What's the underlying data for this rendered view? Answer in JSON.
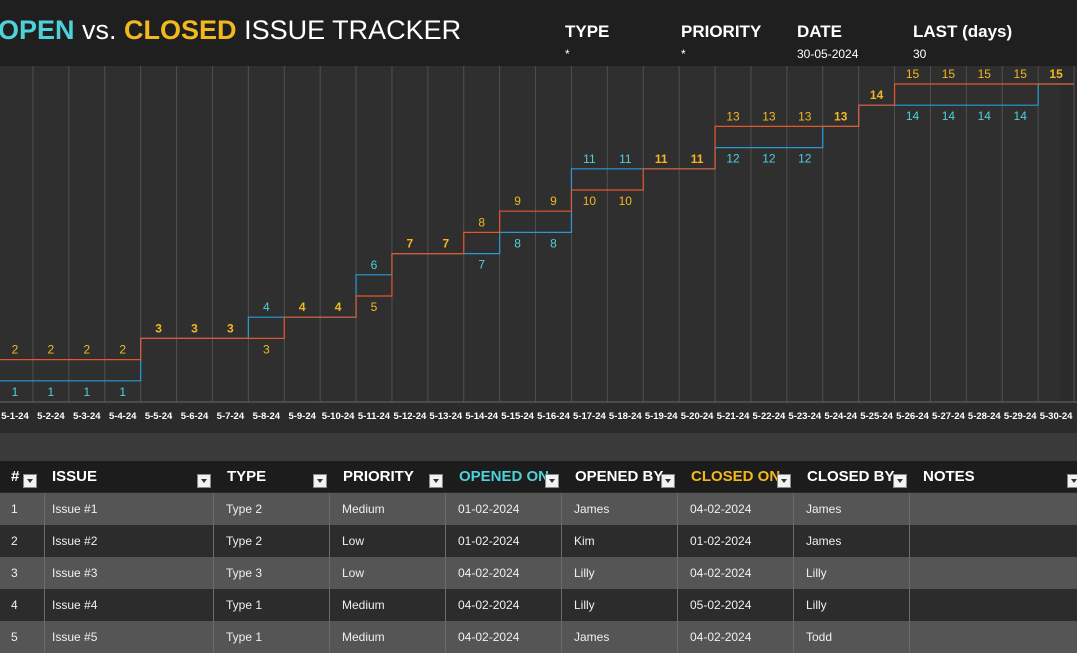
{
  "header": {
    "title_open": "OPEN",
    "title_vs": " vs. ",
    "title_closed": "CLOSED",
    "title_rest": " ISSUE TRACKER",
    "filters": [
      {
        "label": "TYPE",
        "value": "*"
      },
      {
        "label": "PRIORITY",
        "value": "*"
      },
      {
        "label": "DATE",
        "value": "30-05-2024"
      },
      {
        "label": "LAST (days)",
        "value": "30"
      }
    ]
  },
  "colors": {
    "open": "#4fd1d9",
    "closed": "#f4b81f",
    "open_line": "#2a9ad6",
    "closed_line": "#e2572c"
  },
  "chart_data": {
    "type": "line",
    "categories": [
      "5-1-24",
      "5-2-24",
      "5-3-24",
      "5-4-24",
      "5-5-24",
      "5-6-24",
      "5-7-24",
      "5-8-24",
      "5-9-24",
      "5-10-24",
      "5-11-24",
      "5-12-24",
      "5-13-24",
      "5-14-24",
      "5-15-24",
      "5-16-24",
      "5-17-24",
      "5-18-24",
      "5-19-24",
      "5-20-24",
      "5-21-24",
      "5-22-24",
      "5-23-24",
      "5-24-24",
      "5-25-24",
      "5-26-24",
      "5-27-24",
      "5-28-24",
      "5-29-24",
      "5-30-24"
    ],
    "series": [
      {
        "key": "opened",
        "values": [
          1,
          1,
          1,
          1,
          3,
          3,
          3,
          4,
          4,
          4,
          6,
          7,
          7,
          7,
          8,
          8,
          11,
          11,
          11,
          11,
          12,
          12,
          12,
          13,
          14,
          14,
          14,
          14,
          14,
          15
        ]
      },
      {
        "key": "closed",
        "values": [
          2,
          2,
          2,
          2,
          3,
          3,
          3,
          3,
          4,
          4,
          5,
          7,
          7,
          8,
          9,
          9,
          10,
          10,
          11,
          11,
          13,
          13,
          13,
          13,
          14,
          15,
          15,
          15,
          15,
          15
        ]
      }
    ],
    "ylim": [
      0,
      17
    ],
    "grid": true,
    "legend": "none"
  },
  "table": {
    "columns": [
      {
        "label": "#"
      },
      {
        "label": "ISSUE"
      },
      {
        "label": "TYPE"
      },
      {
        "label": "PRIORITY"
      },
      {
        "label": "OPENED ON"
      },
      {
        "label": "OPENED BY"
      },
      {
        "label": "CLOSED ON"
      },
      {
        "label": "CLOSED BY"
      },
      {
        "label": "NOTES"
      }
    ],
    "rows": [
      [
        "1",
        "Issue #1",
        "Type 2",
        "Medium",
        "01-02-2024",
        "James",
        "04-02-2024",
        "James",
        ""
      ],
      [
        "2",
        "Issue #2",
        "Type 2",
        "Low",
        "01-02-2024",
        "Kim",
        "01-02-2024",
        "James",
        ""
      ],
      [
        "3",
        "Issue #3",
        "Type 3",
        "Low",
        "04-02-2024",
        "Lilly",
        "04-02-2024",
        "Lilly",
        ""
      ],
      [
        "4",
        "Issue #4",
        "Type 1",
        "Medium",
        "04-02-2024",
        "Lilly",
        "05-02-2024",
        "Lilly",
        ""
      ],
      [
        "5",
        "Issue #5",
        "Type 1",
        "Medium",
        "04-02-2024",
        "James",
        "04-02-2024",
        "Todd",
        ""
      ]
    ]
  }
}
